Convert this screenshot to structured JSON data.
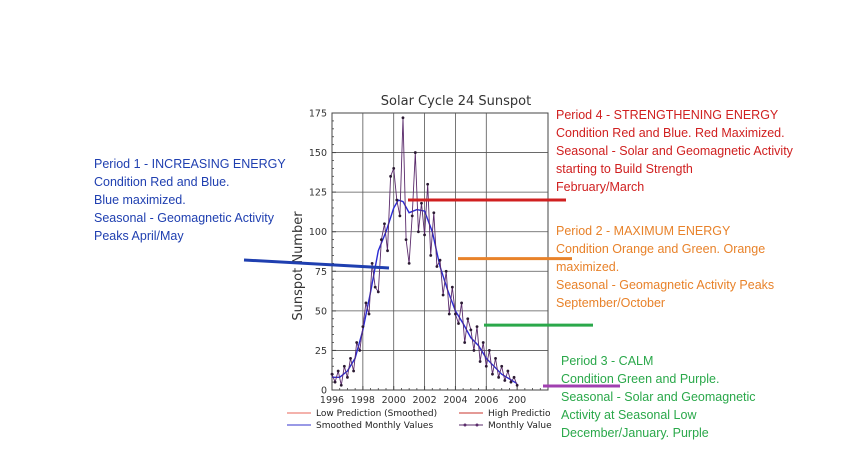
{
  "chart_data": {
    "type": "line",
    "title": "Solar Cycle 24 Sunspot",
    "xlabel": "",
    "ylabel": "Sunspot Number",
    "xlim": [
      1996,
      2010
    ],
    "ylim": [
      0,
      175
    ],
    "x_ticks": [
      "1996",
      "1998",
      "2000",
      "2002",
      "2004",
      "2006",
      "200"
    ],
    "y_ticks": [
      "0",
      "25",
      "50",
      "75",
      "100",
      "125",
      "150",
      "175"
    ],
    "grid": true,
    "legend": [
      {
        "label": "Low Prediction (Smoothed)",
        "color": "#e8665a",
        "style": "line"
      },
      {
        "label": "High Predictio",
        "color": "#c8352c",
        "style": "line"
      },
      {
        "label": "Smoothed Monthly Values",
        "color": "#3333cc",
        "style": "line"
      },
      {
        "label": "Monthly Value",
        "color": "#5a2b6b",
        "style": "line-marker"
      }
    ],
    "series": [
      {
        "name": "Smoothed Monthly Values",
        "color": "#2a2ad4",
        "x": [
          1996.0,
          1996.5,
          1997.0,
          1997.5,
          1998.0,
          1998.5,
          1999.0,
          1999.5,
          2000.0,
          2000.3,
          2000.6,
          2001.0,
          2001.5,
          2002.0,
          2002.5,
          2003.0,
          2003.5,
          2004.0,
          2004.5,
          2005.0,
          2005.5,
          2006.0,
          2006.5,
          2007.0,
          2007.5,
          2008.0
        ],
        "y": [
          8,
          8,
          12,
          20,
          38,
          62,
          88,
          100,
          115,
          120,
          119,
          112,
          114,
          113,
          100,
          78,
          63,
          50,
          42,
          33,
          28,
          20,
          15,
          10,
          7,
          4
        ]
      },
      {
        "name": "Monthly Value",
        "color": "#5a2b6b",
        "x": [
          1996.0,
          1996.2,
          1996.4,
          1996.6,
          1996.8,
          1997.0,
          1997.2,
          1997.4,
          1997.6,
          1997.8,
          1998.0,
          1998.2,
          1998.4,
          1998.6,
          1998.8,
          1999.0,
          1999.2,
          1999.4,
          1999.6,
          1999.8,
          2000.0,
          2000.2,
          2000.4,
          2000.6,
          2000.8,
          2001.0,
          2001.2,
          2001.4,
          2001.6,
          2001.8,
          2002.0,
          2002.2,
          2002.4,
          2002.6,
          2002.8,
          2003.0,
          2003.2,
          2003.4,
          2003.6,
          2003.8,
          2004.0,
          2004.2,
          2004.4,
          2004.6,
          2004.8,
          2005.0,
          2005.2,
          2005.4,
          2005.6,
          2005.8,
          2006.0,
          2006.2,
          2006.4,
          2006.6,
          2006.8,
          2007.0,
          2007.2,
          2007.4,
          2007.6,
          2007.8,
          2008.0
        ],
        "y": [
          10,
          5,
          12,
          3,
          15,
          8,
          20,
          12,
          30,
          25,
          40,
          55,
          48,
          80,
          65,
          62,
          95,
          105,
          88,
          135,
          140,
          120,
          110,
          172,
          95,
          80,
          110,
          150,
          100,
          118,
          98,
          130,
          85,
          112,
          78,
          82,
          60,
          75,
          48,
          65,
          48,
          42,
          55,
          30,
          45,
          38,
          25,
          40,
          18,
          30,
          15,
          25,
          10,
          20,
          8,
          15,
          6,
          12,
          5,
          8,
          3
        ]
      }
    ]
  },
  "annotations": {
    "period1": {
      "lines": [
        "Period 1 - INCREASING ENERGY",
        "Condition Red and Blue.",
        "Blue maximized.",
        "Seasonal - Geomagnetic Activity",
        "Peaks April/May"
      ],
      "color": "#1f3fb0"
    },
    "period4": {
      "lines": [
        "Period 4 - STRENGTHENING ENERGY",
        "Condition Red and Blue. Red Maximized.",
        "Seasonal - Solar and Geomagnetic Activity",
        "starting to Build Strength",
        "February/March"
      ],
      "color": "#d02020"
    },
    "period2": {
      "lines": [
        "Period 2 - MAXIMUM ENERGY",
        "Condition Orange and Green. Orange",
        "maximized.",
        "Seasonal - Geomagnetic Activity Peaks",
        "September/October"
      ],
      "color": "#e8822a"
    },
    "period3": {
      "lines": [
        "Period 3 - CALM",
        "Condition Green and Purple.",
        "Seasonal - Solar and Geomagnetic",
        "Activity at Seasonal Low",
        "December/January. Purple"
      ],
      "color": "#2aa84a"
    }
  },
  "markers": [
    {
      "name": "period1-line",
      "color": "#1f3fb0",
      "y_value": 77
    },
    {
      "name": "period4-line",
      "color": "#d02020",
      "y_value": 120
    },
    {
      "name": "period2-line",
      "color": "#e8822a",
      "y_value": 83
    },
    {
      "name": "period3-line",
      "color": "#2aa84a",
      "y_value": 41
    },
    {
      "name": "period3-purple-line",
      "color": "#a040b0",
      "y_value": 0
    }
  ]
}
